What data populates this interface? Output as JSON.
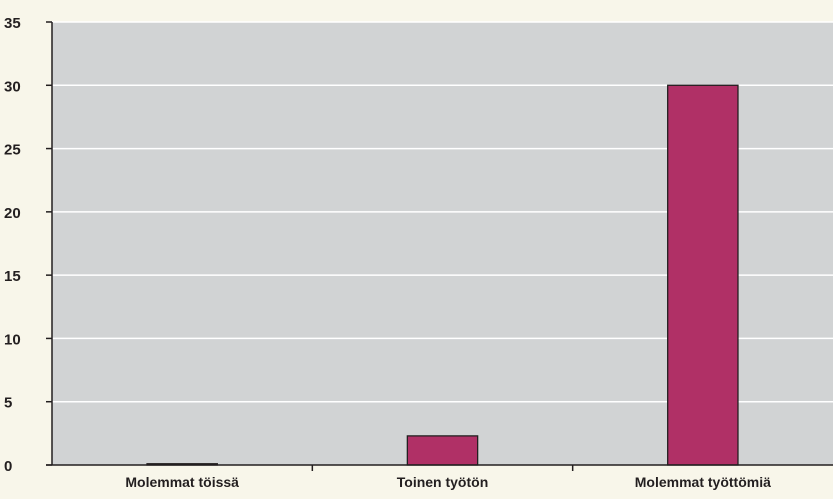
{
  "colors": {
    "page_background": "#f8f6ea",
    "plot_background": "#d1d3d4",
    "gridline": "#ffffff",
    "bar_fill": "#b03066",
    "bar_stroke": "#231f20",
    "axis": "#231f20",
    "text": "#231f20"
  },
  "chart_data": {
    "type": "bar",
    "categories": [
      "Molemmat töissä",
      "Toinen työtön",
      "Molemmat työttömiä"
    ],
    "values": [
      0.1,
      2.3,
      30
    ],
    "title": "",
    "xlabel": "",
    "ylabel": "",
    "ylim": [
      0,
      35
    ],
    "yticks": [
      "0",
      "5",
      "10",
      "15",
      "20",
      "25",
      "30",
      "35"
    ],
    "grid": true,
    "legend": "none"
  }
}
